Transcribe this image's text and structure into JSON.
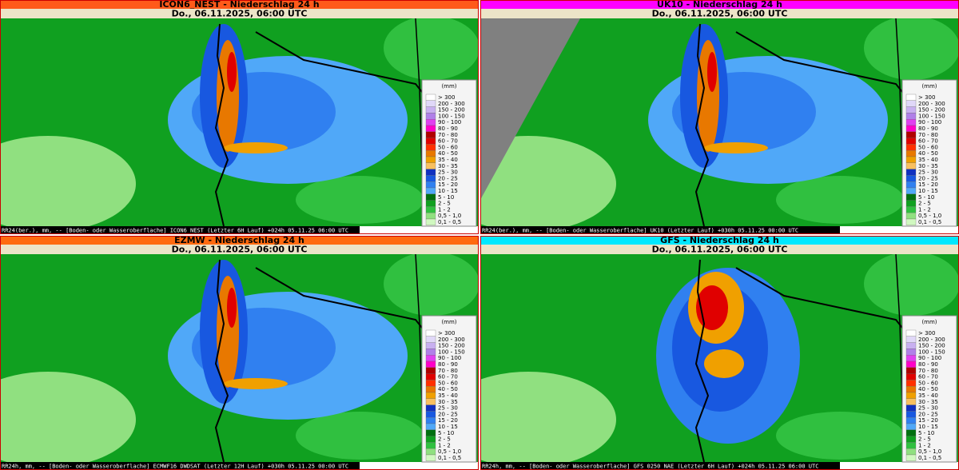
{
  "panels": [
    {
      "title": "ICON6_NEST - Niederschlag 24 h",
      "subtitle": "Do., 06.11.2025, 06:00 UTC",
      "footer": "RR24(ber.), mm, -- [Boden- oder Wasseroberflache] ICON6_NEST (Letzter 6H Lauf) +024h  05.11.25 06:00 UTC"
    },
    {
      "title": "UK10 - Niederschlag 24 h",
      "subtitle": "Do., 06.11.2025, 06:00 UTC",
      "footer": "RR24(ber.), mm, -- [Boden- oder Wasseroberflache] UK10 (Letzter Lauf) +030h  05.11.25 00:00 UTC"
    },
    {
      "title": "EZMW - Niederschlag 24 h",
      "subtitle": "Do., 06.11.2025, 06:00 UTC",
      "footer": "RR24h, mm, -- [Boden- oder Wasseroberflache] ECMWF16 DWDSAT (Letzter 12H Lauf) +030h  05.11.25 00:00 UTC"
    },
    {
      "title": "GFS - Niederschlag 24 h",
      "subtitle": "Do., 06.11.2025, 06:00 UTC",
      "footer": "RR24h, mm, -- [Boden- oder Wasseroberflache] GFS 0250 NAE (Letzter  6H Lauf) +024h  05.11.25 06:00 UTC"
    }
  ],
  "legend": {
    "unit": "(mm)",
    "labels": [
      "> 300",
      "200 - 300",
      "150 - 200",
      "100 - 150",
      "90 - 100",
      "80 - 90",
      "70 - 80",
      "60 - 70",
      "50 - 60",
      "40 - 50",
      "35 - 40",
      "30 - 35",
      "25 - 30",
      "20 - 25",
      "15 - 20",
      "10 - 15",
      "5 - 10",
      "2 - 5",
      "1 - 2",
      "0,5 - 1,0",
      "0,1 - 0,5"
    ]
  }
}
